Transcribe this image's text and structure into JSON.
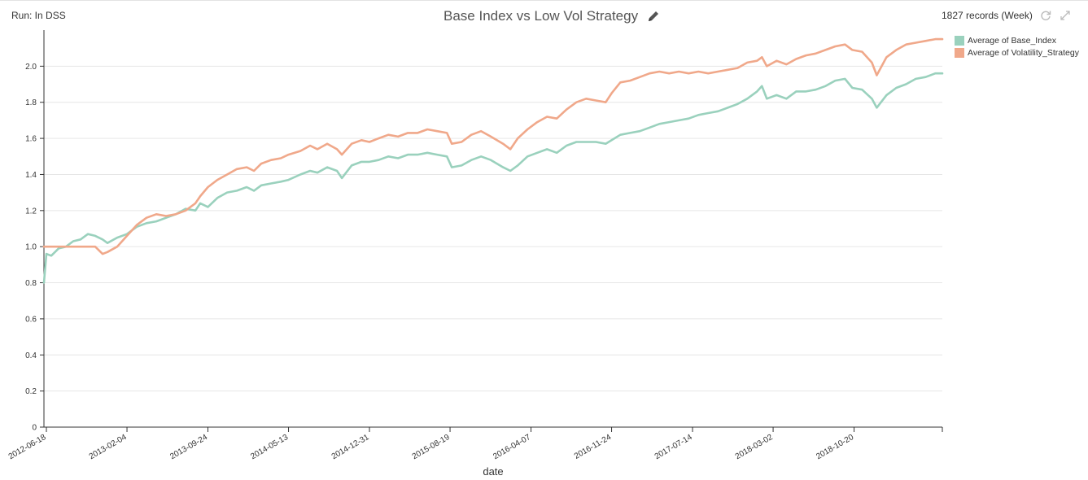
{
  "header": {
    "run_label": "Run: In DSS",
    "records_label": "1827 records (Week)",
    "edit_icon": "pencil-icon",
    "refresh_icon": "refresh-icon",
    "expand_icon": "expand-icon"
  },
  "colors": {
    "base_index": "#9ad1bd",
    "volatility_strategy": "#f0a88a",
    "grid": "#e6e6e6",
    "axis": "#333333"
  },
  "chart_data": {
    "type": "line",
    "title": "Base Index vs Low Vol Strategy",
    "xlabel": "date",
    "ylabel": "",
    "x_start": "2012-06-11",
    "x_end": "2019-06-30",
    "ylim": [
      0,
      2.2
    ],
    "y_ticks": [
      0,
      0.2,
      0.4,
      0.6,
      0.8,
      1.0,
      1.2,
      1.4,
      1.6,
      1.8,
      2.0
    ],
    "y_tick_labels": [
      "0",
      "0.2",
      "0.4",
      "0.6",
      "0.8",
      "1.0",
      "1.2",
      "1.4",
      "1.6",
      "1.8",
      "2.0"
    ],
    "x_ticks": [
      "2012-06-18",
      "2013-02-04",
      "2013-09-24",
      "2014-05-13",
      "2014-12-31",
      "2015-08-19",
      "2016-04-07",
      "2016-11-24",
      "2017-07-14",
      "2018-03-02",
      "2018-10-20"
    ],
    "grid": true,
    "legend_position": "top-right",
    "series": [
      {
        "name": "Average of Base_Index",
        "points": [
          [
            "2012-06-11",
            0.8
          ],
          [
            "2012-06-18",
            0.96
          ],
          [
            "2012-07-02",
            0.95
          ],
          [
            "2012-07-23",
            0.99
          ],
          [
            "2012-08-13",
            1.0
          ],
          [
            "2012-09-03",
            1.03
          ],
          [
            "2012-09-24",
            1.04
          ],
          [
            "2012-10-15",
            1.07
          ],
          [
            "2012-11-05",
            1.06
          ],
          [
            "2012-11-26",
            1.04
          ],
          [
            "2012-12-10",
            1.02
          ],
          [
            "2013-01-07",
            1.05
          ],
          [
            "2013-02-04",
            1.07
          ],
          [
            "2013-03-04",
            1.11
          ],
          [
            "2013-04-01",
            1.13
          ],
          [
            "2013-04-29",
            1.14
          ],
          [
            "2013-05-27",
            1.16
          ],
          [
            "2013-06-24",
            1.18
          ],
          [
            "2013-07-22",
            1.21
          ],
          [
            "2013-08-19",
            1.2
          ],
          [
            "2013-09-02",
            1.24
          ],
          [
            "2013-09-24",
            1.22
          ],
          [
            "2013-10-21",
            1.27
          ],
          [
            "2013-11-18",
            1.3
          ],
          [
            "2013-12-16",
            1.31
          ],
          [
            "2014-01-13",
            1.33
          ],
          [
            "2014-02-03",
            1.31
          ],
          [
            "2014-02-24",
            1.34
          ],
          [
            "2014-03-24",
            1.35
          ],
          [
            "2014-04-21",
            1.36
          ],
          [
            "2014-05-13",
            1.37
          ],
          [
            "2014-06-16",
            1.4
          ],
          [
            "2014-07-14",
            1.42
          ],
          [
            "2014-08-04",
            1.41
          ],
          [
            "2014-09-01",
            1.44
          ],
          [
            "2014-09-29",
            1.42
          ],
          [
            "2014-10-13",
            1.38
          ],
          [
            "2014-11-10",
            1.45
          ],
          [
            "2014-12-08",
            1.47
          ],
          [
            "2014-12-31",
            1.47
          ],
          [
            "2015-01-26",
            1.48
          ],
          [
            "2015-02-23",
            1.5
          ],
          [
            "2015-03-23",
            1.49
          ],
          [
            "2015-04-20",
            1.51
          ],
          [
            "2015-05-18",
            1.51
          ],
          [
            "2015-06-15",
            1.52
          ],
          [
            "2015-07-13",
            1.51
          ],
          [
            "2015-08-10",
            1.5
          ],
          [
            "2015-08-24",
            1.44
          ],
          [
            "2015-09-21",
            1.45
          ],
          [
            "2015-10-19",
            1.48
          ],
          [
            "2015-11-16",
            1.5
          ],
          [
            "2015-12-14",
            1.48
          ],
          [
            "2016-01-18",
            1.44
          ],
          [
            "2016-02-08",
            1.42
          ],
          [
            "2016-02-29",
            1.45
          ],
          [
            "2016-03-28",
            1.5
          ],
          [
            "2016-04-25",
            1.52
          ],
          [
            "2016-05-23",
            1.54
          ],
          [
            "2016-06-20",
            1.52
          ],
          [
            "2016-07-18",
            1.56
          ],
          [
            "2016-08-15",
            1.58
          ],
          [
            "2016-09-12",
            1.58
          ],
          [
            "2016-10-10",
            1.58
          ],
          [
            "2016-11-07",
            1.57
          ],
          [
            "2016-11-24",
            1.59
          ],
          [
            "2016-12-19",
            1.62
          ],
          [
            "2017-01-16",
            1.63
          ],
          [
            "2017-02-13",
            1.64
          ],
          [
            "2017-03-13",
            1.66
          ],
          [
            "2017-04-10",
            1.68
          ],
          [
            "2017-05-08",
            1.69
          ],
          [
            "2017-06-05",
            1.7
          ],
          [
            "2017-07-03",
            1.71
          ],
          [
            "2017-07-31",
            1.73
          ],
          [
            "2017-08-28",
            1.74
          ],
          [
            "2017-09-25",
            1.75
          ],
          [
            "2017-10-23",
            1.77
          ],
          [
            "2017-11-20",
            1.79
          ],
          [
            "2017-12-18",
            1.82
          ],
          [
            "2018-01-15",
            1.86
          ],
          [
            "2018-01-29",
            1.89
          ],
          [
            "2018-02-12",
            1.82
          ],
          [
            "2018-03-12",
            1.84
          ],
          [
            "2018-04-09",
            1.82
          ],
          [
            "2018-05-07",
            1.86
          ],
          [
            "2018-06-04",
            1.86
          ],
          [
            "2018-07-02",
            1.87
          ],
          [
            "2018-07-30",
            1.89
          ],
          [
            "2018-08-27",
            1.92
          ],
          [
            "2018-09-24",
            1.93
          ],
          [
            "2018-10-15",
            1.88
          ],
          [
            "2018-11-12",
            1.87
          ],
          [
            "2018-12-10",
            1.82
          ],
          [
            "2018-12-24",
            1.77
          ],
          [
            "2019-01-21",
            1.84
          ],
          [
            "2019-02-18",
            1.88
          ],
          [
            "2019-03-18",
            1.9
          ],
          [
            "2019-04-15",
            1.93
          ],
          [
            "2019-05-13",
            1.94
          ],
          [
            "2019-06-10",
            1.96
          ],
          [
            "2019-06-30",
            1.96
          ]
        ]
      },
      {
        "name": "Average of Volatility_Strategy",
        "points": [
          [
            "2012-06-11",
            1.0
          ],
          [
            "2012-07-02",
            1.0
          ],
          [
            "2012-08-06",
            1.0
          ],
          [
            "2012-09-10",
            1.0
          ],
          [
            "2012-10-15",
            1.0
          ],
          [
            "2012-11-05",
            1.0
          ],
          [
            "2012-11-26",
            0.96
          ],
          [
            "2012-12-10",
            0.97
          ],
          [
            "2013-01-07",
            1.0
          ],
          [
            "2013-02-04",
            1.06
          ],
          [
            "2013-03-04",
            1.12
          ],
          [
            "2013-04-01",
            1.16
          ],
          [
            "2013-04-29",
            1.18
          ],
          [
            "2013-05-27",
            1.17
          ],
          [
            "2013-06-24",
            1.18
          ],
          [
            "2013-07-22",
            1.2
          ],
          [
            "2013-08-19",
            1.24
          ],
          [
            "2013-09-02",
            1.28
          ],
          [
            "2013-09-24",
            1.33
          ],
          [
            "2013-10-21",
            1.37
          ],
          [
            "2013-11-18",
            1.4
          ],
          [
            "2013-12-16",
            1.43
          ],
          [
            "2014-01-13",
            1.44
          ],
          [
            "2014-02-03",
            1.42
          ],
          [
            "2014-02-24",
            1.46
          ],
          [
            "2014-03-24",
            1.48
          ],
          [
            "2014-04-21",
            1.49
          ],
          [
            "2014-05-13",
            1.51
          ],
          [
            "2014-06-16",
            1.53
          ],
          [
            "2014-07-14",
            1.56
          ],
          [
            "2014-08-04",
            1.54
          ],
          [
            "2014-09-01",
            1.57
          ],
          [
            "2014-09-29",
            1.54
          ],
          [
            "2014-10-13",
            1.51
          ],
          [
            "2014-11-10",
            1.57
          ],
          [
            "2014-12-08",
            1.59
          ],
          [
            "2014-12-31",
            1.58
          ],
          [
            "2015-01-26",
            1.6
          ],
          [
            "2015-02-23",
            1.62
          ],
          [
            "2015-03-23",
            1.61
          ],
          [
            "2015-04-20",
            1.63
          ],
          [
            "2015-05-18",
            1.63
          ],
          [
            "2015-06-15",
            1.65
          ],
          [
            "2015-07-13",
            1.64
          ],
          [
            "2015-08-10",
            1.63
          ],
          [
            "2015-08-24",
            1.57
          ],
          [
            "2015-09-21",
            1.58
          ],
          [
            "2015-10-19",
            1.62
          ],
          [
            "2015-11-16",
            1.64
          ],
          [
            "2015-12-14",
            1.61
          ],
          [
            "2016-01-18",
            1.57
          ],
          [
            "2016-02-08",
            1.54
          ],
          [
            "2016-02-29",
            1.6
          ],
          [
            "2016-03-28",
            1.65
          ],
          [
            "2016-04-25",
            1.69
          ],
          [
            "2016-05-23",
            1.72
          ],
          [
            "2016-06-20",
            1.71
          ],
          [
            "2016-07-18",
            1.76
          ],
          [
            "2016-08-15",
            1.8
          ],
          [
            "2016-09-12",
            1.82
          ],
          [
            "2016-10-10",
            1.81
          ],
          [
            "2016-11-07",
            1.8
          ],
          [
            "2016-11-24",
            1.85
          ],
          [
            "2016-12-19",
            1.91
          ],
          [
            "2017-01-16",
            1.92
          ],
          [
            "2017-02-13",
            1.94
          ],
          [
            "2017-03-13",
            1.96
          ],
          [
            "2017-04-10",
            1.97
          ],
          [
            "2017-05-08",
            1.96
          ],
          [
            "2017-06-05",
            1.97
          ],
          [
            "2017-07-03",
            1.96
          ],
          [
            "2017-07-31",
            1.97
          ],
          [
            "2017-08-28",
            1.96
          ],
          [
            "2017-09-25",
            1.97
          ],
          [
            "2017-10-23",
            1.98
          ],
          [
            "2017-11-20",
            1.99
          ],
          [
            "2017-12-18",
            2.02
          ],
          [
            "2018-01-15",
            2.03
          ],
          [
            "2018-01-29",
            2.05
          ],
          [
            "2018-02-12",
            2.0
          ],
          [
            "2018-03-12",
            2.03
          ],
          [
            "2018-04-09",
            2.01
          ],
          [
            "2018-05-07",
            2.04
          ],
          [
            "2018-06-04",
            2.06
          ],
          [
            "2018-07-02",
            2.07
          ],
          [
            "2018-07-30",
            2.09
          ],
          [
            "2018-08-27",
            2.11
          ],
          [
            "2018-09-24",
            2.12
          ],
          [
            "2018-10-15",
            2.09
          ],
          [
            "2018-11-12",
            2.08
          ],
          [
            "2018-12-10",
            2.02
          ],
          [
            "2018-12-24",
            1.95
          ],
          [
            "2019-01-21",
            2.05
          ],
          [
            "2019-02-18",
            2.09
          ],
          [
            "2019-03-18",
            2.12
          ],
          [
            "2019-04-15",
            2.13
          ],
          [
            "2019-05-13",
            2.14
          ],
          [
            "2019-06-10",
            2.15
          ],
          [
            "2019-06-30",
            2.15
          ]
        ]
      }
    ]
  }
}
